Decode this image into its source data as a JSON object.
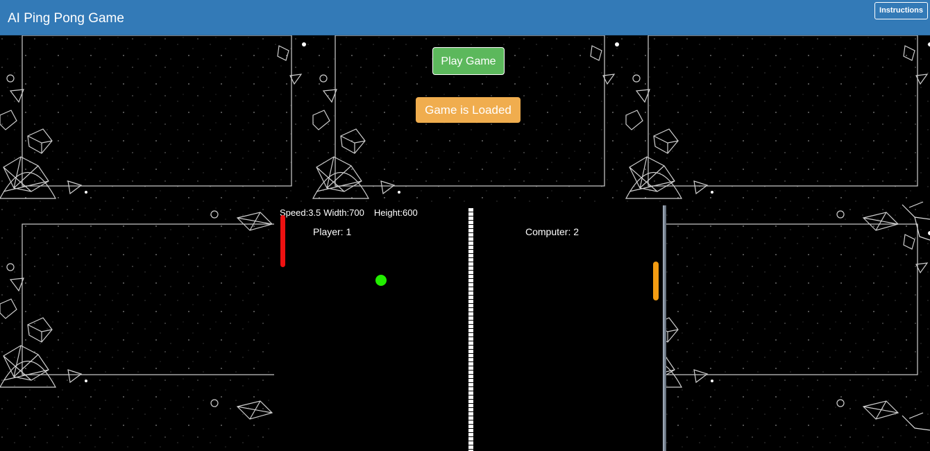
{
  "header": {
    "title": "AI Ping Pong Game",
    "instructions_label": "Instructions"
  },
  "controls": {
    "play_label": "Play Game",
    "status_label": "Game is Loaded"
  },
  "game": {
    "stats": {
      "speed": "Speed:3.5",
      "width": "Width:700",
      "height": "Height:600"
    },
    "player_score": "Player: 1",
    "computer_score": "Computer: 2"
  },
  "colors": {
    "header": "#337ab7",
    "play_button": "#5cb85c",
    "status_badge": "#f0ad4e",
    "player_paddle": "#ee1111",
    "computer_paddle": "#f39c12",
    "ball": "#22ee00",
    "court": "#000000"
  }
}
